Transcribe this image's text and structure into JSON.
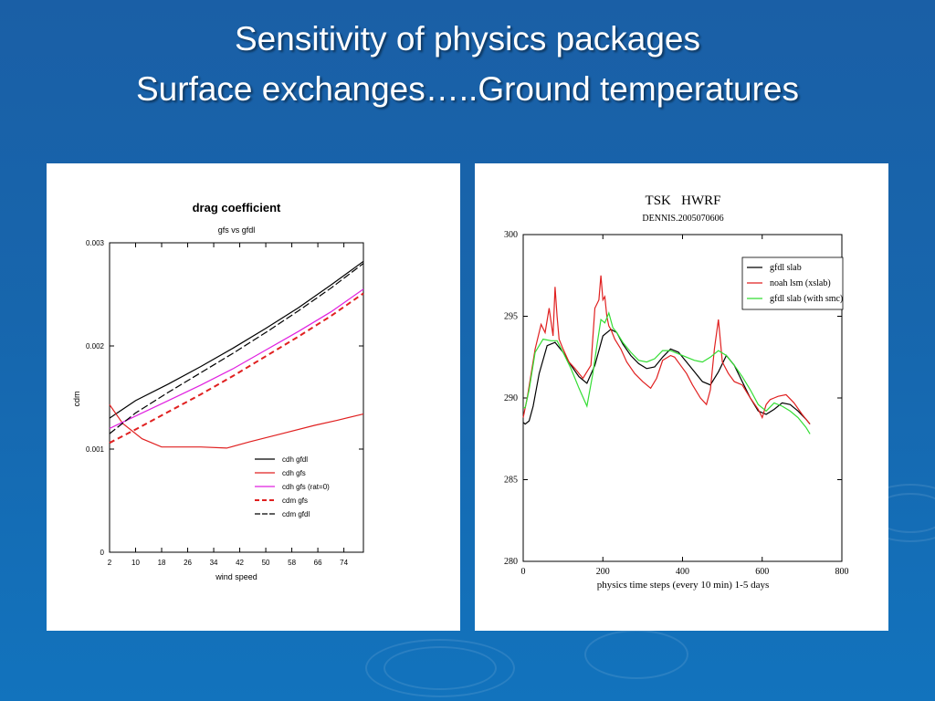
{
  "slide": {
    "title_line1": "Sensitivity of physics packages",
    "title_line2": "Surface exchanges…..Ground temperatures"
  },
  "chart_data": [
    {
      "type": "line",
      "title": "drag coefficient",
      "subtitle": "gfs vs gfdl",
      "xlabel": "wind speed",
      "ylabel": "cdm",
      "xlim": [
        2,
        80
      ],
      "ylim": [
        0,
        0.003
      ],
      "xticks": [
        "2",
        "10",
        "18",
        "26",
        "34",
        "42",
        "50",
        "58",
        "66",
        "74"
      ],
      "xtick_values": [
        2,
        10,
        18,
        26,
        34,
        42,
        50,
        58,
        66,
        74
      ],
      "yticks": [
        "0",
        "0.001",
        "0.002",
        "0.003"
      ],
      "ytick_values": [
        0,
        0.001,
        0.002,
        0.003
      ],
      "grid": false,
      "legend_position": "bottom-right",
      "series": [
        {
          "name": "cdh gfdl",
          "color": "#000000",
          "style": "solid",
          "width": 1.2,
          "x": [
            2,
            10,
            20,
            30,
            40,
            50,
            60,
            70,
            80
          ],
          "y": [
            0.0013,
            0.00147,
            0.00163,
            0.0018,
            0.00198,
            0.00217,
            0.00237,
            0.00259,
            0.00282
          ]
        },
        {
          "name": "cdh gfs",
          "color": "#e02020",
          "style": "solid",
          "width": 1.2,
          "x": [
            2,
            6,
            12,
            18,
            22,
            30,
            38,
            45,
            55,
            65,
            72,
            80
          ],
          "y": [
            0.00143,
            0.00125,
            0.0011,
            0.00102,
            0.00102,
            0.00102,
            0.00101,
            0.00107,
            0.00115,
            0.00123,
            0.00128,
            0.00134
          ]
        },
        {
          "name": "cdh gfs (rat=0)",
          "color": "#e020e0",
          "style": "solid",
          "width": 1.2,
          "x": [
            2,
            10,
            20,
            30,
            40,
            50,
            60,
            70,
            80
          ],
          "y": [
            0.0012,
            0.00132,
            0.00147,
            0.00162,
            0.00178,
            0.00196,
            0.00214,
            0.00233,
            0.00255
          ]
        },
        {
          "name": "cdm gfs",
          "color": "#e02020",
          "style": "dashed",
          "width": 2,
          "x": [
            2,
            10,
            20,
            30,
            40,
            50,
            60,
            70,
            80
          ],
          "y": [
            0.00106,
            0.00119,
            0.00136,
            0.00153,
            0.00171,
            0.0019,
            0.00209,
            0.00229,
            0.00251
          ]
        },
        {
          "name": "cdm gfdl",
          "color": "#000000",
          "style": "dashed",
          "width": 1.2,
          "x": [
            2,
            10,
            20,
            30,
            40,
            50,
            60,
            70,
            80
          ],
          "y": [
            0.00115,
            0.00135,
            0.00155,
            0.00174,
            0.00193,
            0.00213,
            0.00234,
            0.00256,
            0.0028
          ]
        }
      ]
    },
    {
      "type": "line",
      "title": "TSK   HWRF",
      "subtitle": "DENNIS.2005070606",
      "xlabel": "physics time steps (every 10 min) 1-5 days",
      "ylabel": "",
      "xlim": [
        0,
        800
      ],
      "ylim": [
        280,
        300
      ],
      "xticks": [
        "0",
        "200",
        "400",
        "600",
        "800"
      ],
      "xtick_values": [
        0,
        200,
        400,
        600,
        800
      ],
      "yticks": [
        "280",
        "285",
        "290",
        "295",
        "300"
      ],
      "ytick_values": [
        280,
        285,
        290,
        295,
        300
      ],
      "grid": false,
      "legend_position": "top-right",
      "series": [
        {
          "name": "gfdl slab",
          "color": "#000000",
          "x": [
            0,
            5,
            15,
            25,
            40,
            60,
            80,
            100,
            120,
            140,
            160,
            180,
            200,
            220,
            235,
            250,
            270,
            290,
            310,
            330,
            350,
            370,
            390,
            410,
            430,
            450,
            470,
            490,
            510,
            530,
            550,
            570,
            590,
            610,
            630,
            650,
            670,
            690,
            710,
            720
          ],
          "y": [
            288.5,
            288.4,
            288.6,
            289.5,
            291.5,
            293.2,
            293.4,
            292.8,
            292.0,
            291.3,
            290.9,
            292.0,
            293.8,
            294.2,
            294.0,
            293.3,
            292.6,
            292.1,
            291.8,
            291.9,
            292.5,
            293.0,
            292.8,
            292.2,
            291.6,
            291.0,
            290.8,
            291.6,
            292.6,
            292.0,
            291.0,
            290.0,
            289.2,
            289.0,
            289.3,
            289.7,
            289.6,
            289.2,
            288.7,
            288.4
          ]
        },
        {
          "name": "noah lsm (xslab)",
          "color": "#e02020",
          "x": [
            0,
            10,
            30,
            45,
            55,
            65,
            75,
            80,
            85,
            90,
            100,
            115,
            130,
            150,
            170,
            180,
            190,
            195,
            200,
            205,
            210,
            215,
            220,
            230,
            245,
            260,
            280,
            300,
            320,
            335,
            350,
            370,
            380,
            395,
            410,
            425,
            445,
            460,
            470,
            480,
            490,
            500,
            515,
            530,
            550,
            570,
            590,
            600,
            610,
            620,
            630,
            640,
            660,
            680,
            700,
            720
          ],
          "y": [
            288.8,
            290.0,
            293.0,
            294.5,
            294.0,
            295.5,
            293.8,
            296.8,
            295.0,
            293.6,
            293.0,
            292.2,
            291.8,
            291.2,
            292.0,
            295.5,
            296.0,
            297.5,
            296.0,
            296.2,
            295.0,
            294.4,
            294.2,
            293.6,
            293.0,
            292.2,
            291.5,
            291.0,
            290.6,
            291.2,
            292.3,
            292.6,
            292.5,
            292.0,
            291.5,
            290.8,
            290.0,
            289.6,
            290.5,
            293.0,
            294.8,
            292.2,
            291.5,
            291.0,
            290.8,
            290.0,
            289.3,
            288.8,
            289.6,
            289.9,
            290.0,
            290.1,
            290.2,
            289.7,
            289.0,
            288.4
          ]
        },
        {
          "name": "gfdl slab (with smc)",
          "color": "#33dd33",
          "x": [
            0,
            5,
            15,
            30,
            50,
            70,
            85,
            100,
            120,
            140,
            160,
            175,
            185,
            195,
            205,
            215,
            225,
            235,
            250,
            270,
            290,
            310,
            330,
            350,
            370,
            390,
            410,
            430,
            450,
            470,
            490,
            510,
            530,
            550,
            570,
            590,
            610,
            630,
            650,
            670,
            690,
            710,
            720
          ],
          "y": [
            289.4,
            289.4,
            290.5,
            292.8,
            293.6,
            293.5,
            293.5,
            292.8,
            291.8,
            290.6,
            289.5,
            291.5,
            293.2,
            294.8,
            294.6,
            295.2,
            294.3,
            294.0,
            293.4,
            292.8,
            292.3,
            292.2,
            292.4,
            292.9,
            292.9,
            292.7,
            292.5,
            292.3,
            292.2,
            292.5,
            292.9,
            292.6,
            292.0,
            291.3,
            290.5,
            289.6,
            289.2,
            289.7,
            289.5,
            289.2,
            288.8,
            288.2,
            287.8
          ]
        }
      ]
    }
  ]
}
